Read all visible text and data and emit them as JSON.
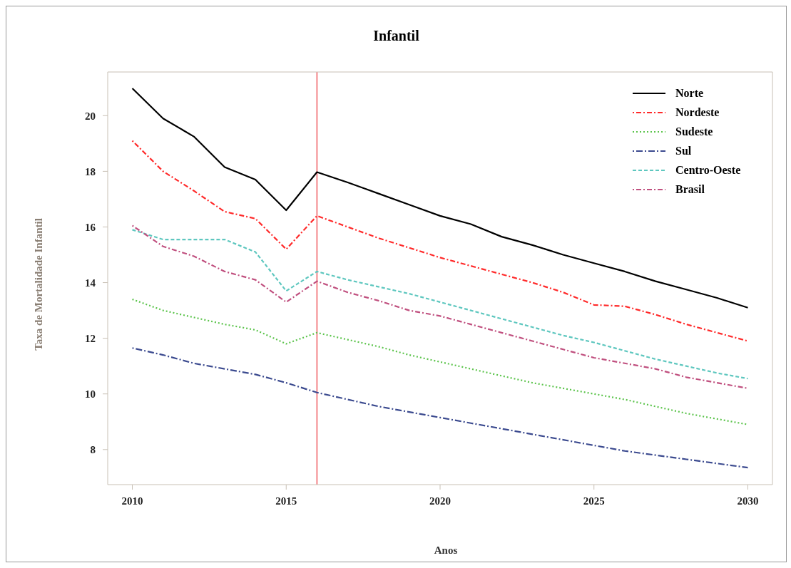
{
  "chart_data": {
    "type": "line",
    "title": "Infantil",
    "xlabel": "Anos",
    "ylabel": "Taxa de Mortalidade Infantil",
    "x": [
      2010,
      2011,
      2012,
      2013,
      2014,
      2015,
      2016,
      2017,
      2018,
      2019,
      2020,
      2021,
      2022,
      2023,
      2024,
      2025,
      2026,
      2027,
      2028,
      2029,
      2030
    ],
    "series": [
      {
        "name": "Norte",
        "color": "#000000",
        "line_style": "solid",
        "values": [
          20.98,
          19.9,
          19.25,
          18.15,
          17.7,
          16.6,
          17.97,
          17.6,
          17.2,
          16.8,
          16.4,
          16.1,
          15.65,
          15.35,
          15.0,
          14.7,
          14.4,
          14.05,
          13.75,
          13.45,
          13.1
        ]
      },
      {
        "name": "Nordeste",
        "color": "#ff2a2a",
        "line_style": "dashed",
        "values": [
          19.1,
          18.0,
          17.3,
          16.55,
          16.3,
          15.2,
          16.4,
          16.0,
          15.6,
          15.25,
          14.9,
          14.6,
          14.3,
          14.0,
          13.65,
          13.2,
          13.15,
          12.85,
          12.5,
          12.2,
          11.9
        ]
      },
      {
        "name": "Sudeste",
        "color": "#5cc44c",
        "line_style": "dotted",
        "values": [
          13.4,
          13.0,
          12.75,
          12.5,
          12.3,
          11.8,
          12.2,
          11.95,
          11.7,
          11.4,
          11.15,
          10.9,
          10.65,
          10.4,
          10.2,
          10.0,
          9.8,
          9.55,
          9.3,
          9.1,
          8.9
        ]
      },
      {
        "name": "Sul",
        "color": "#3b4a8f",
        "line_style": "dashed",
        "values": [
          11.65,
          11.4,
          11.1,
          10.9,
          10.7,
          10.4,
          10.05,
          9.8,
          9.55,
          9.35,
          9.15,
          8.95,
          8.75,
          8.55,
          8.35,
          8.15,
          7.95,
          7.8,
          7.65,
          7.5,
          7.35
        ]
      },
      {
        "name": "Centro-Oeste",
        "color": "#5ec7bf",
        "line_style": "dashed",
        "values": [
          15.9,
          15.55,
          15.55,
          15.55,
          15.1,
          13.7,
          14.4,
          14.1,
          13.85,
          13.6,
          13.3,
          13.0,
          12.7,
          12.4,
          12.1,
          11.85,
          11.55,
          11.25,
          11.0,
          10.75,
          10.55
        ]
      },
      {
        "name": "Brasil",
        "color": "#c0507f",
        "line_style": "dashed",
        "values": [
          16.05,
          15.3,
          14.95,
          14.4,
          14.1,
          13.3,
          14.05,
          13.65,
          13.35,
          13.0,
          12.8,
          12.5,
          12.2,
          11.9,
          11.6,
          11.3,
          11.1,
          10.9,
          10.6,
          10.4,
          10.2
        ]
      }
    ],
    "xlim": [
      2009.2,
      2030.8
    ],
    "xticks": [
      2010,
      2015,
      2020,
      2025,
      2030
    ],
    "ylim": [
      6.74,
      21.57
    ],
    "yticks": [
      8,
      10,
      12,
      14,
      16,
      18,
      20
    ],
    "ref_lines": [
      {
        "axis": "x",
        "value": 2016,
        "color": "#f4868a",
        "line_style": "solid"
      }
    ],
    "grid": false,
    "legend": "top right",
    "marker": "none"
  }
}
